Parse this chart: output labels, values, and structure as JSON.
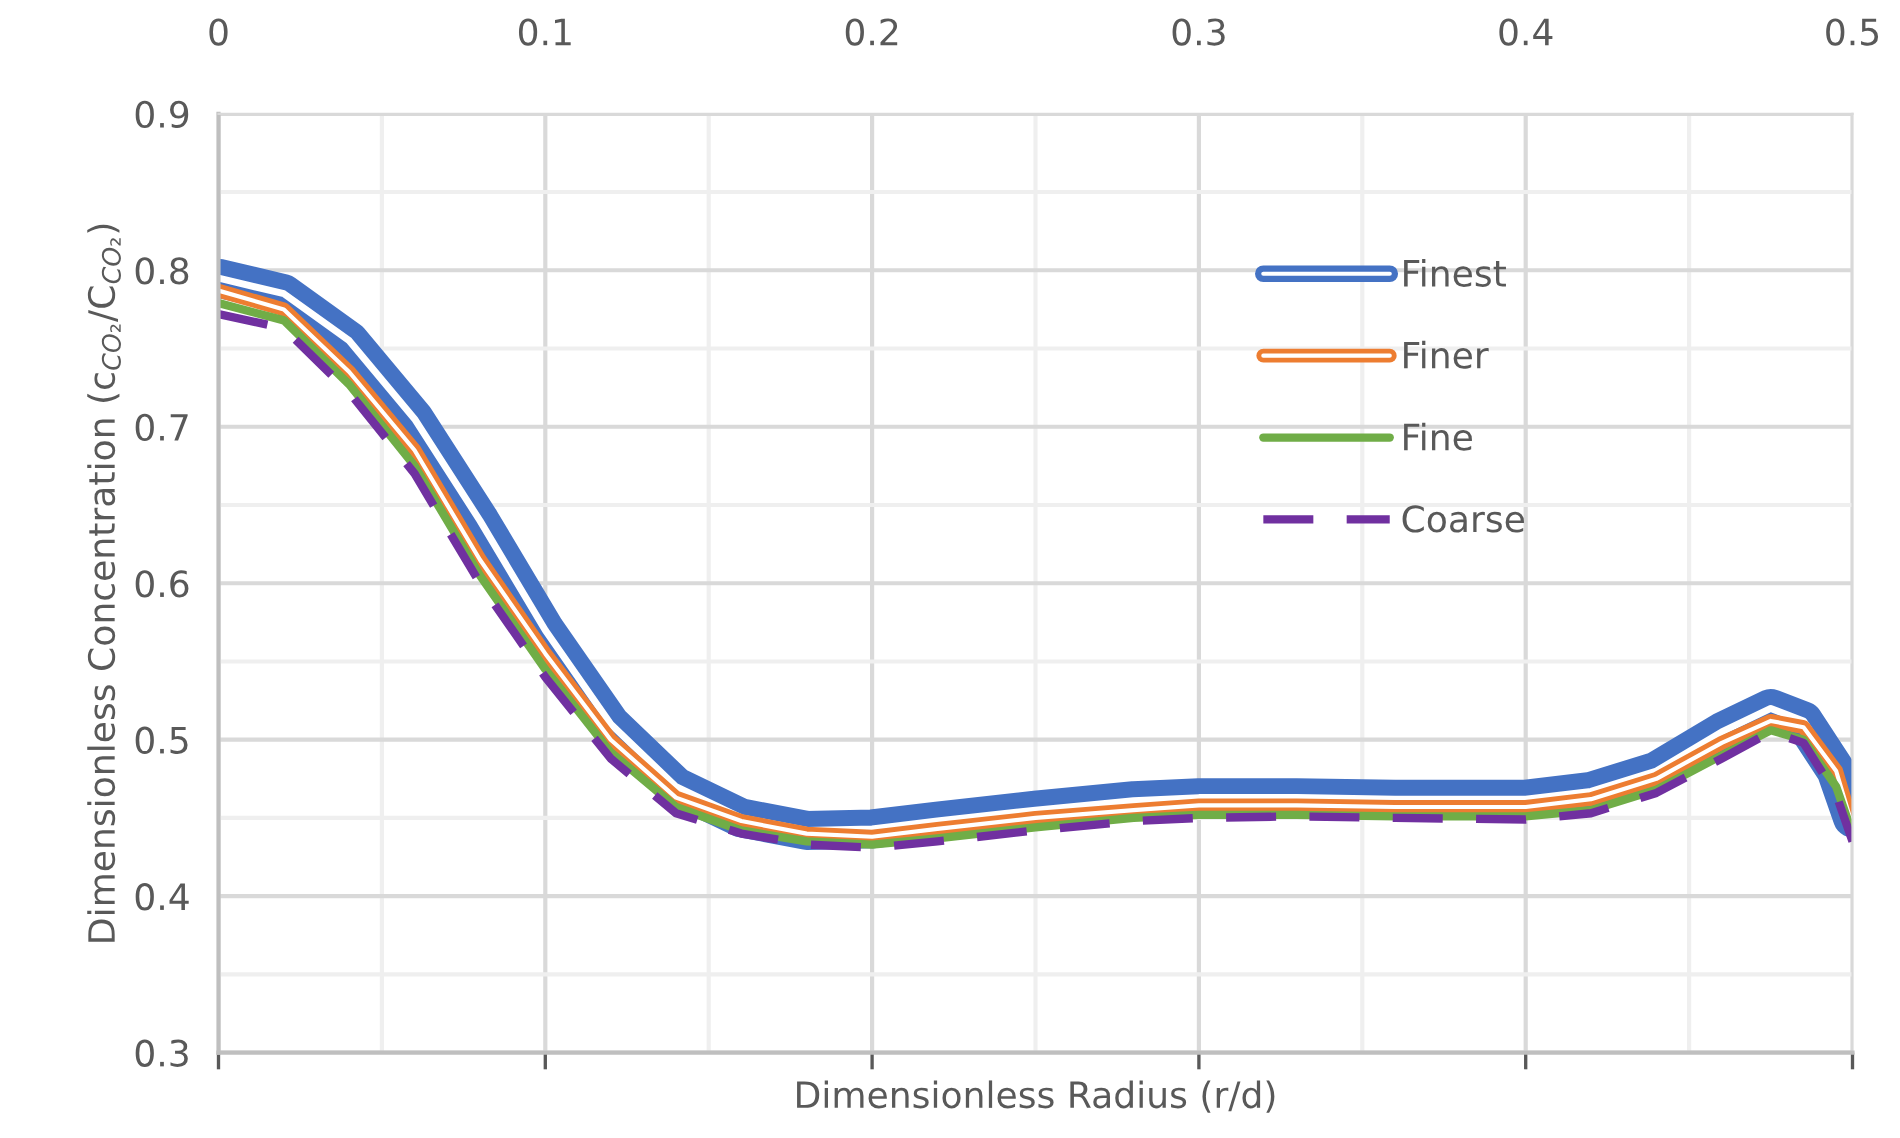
{
  "chart_data": {
    "type": "line",
    "xlabel": "Dimensionless Radius (r/d)",
    "ylabel": "Dimensionless Concentration (c$_{CO₂}$/C$_{CO₂}$)",
    "xlim": [
      0,
      0.5
    ],
    "xticks": [
      0,
      0.1,
      0.2,
      0.3,
      0.4,
      0.5
    ],
    "ylim": [
      0.3,
      0.9
    ],
    "yticks": [
      0.3,
      0.4,
      0.5,
      0.6,
      0.7,
      0.8,
      0.9
    ],
    "grid": true,
    "legend": "top right",
    "marker": "none",
    "x": [
      0,
      0.02,
      0.04,
      0.06,
      0.08,
      0.1,
      0.12,
      0.14,
      0.16,
      0.18,
      0.2,
      0.22,
      0.25,
      0.28,
      0.3,
      0.33,
      0.36,
      0.4,
      0.42,
      0.44,
      0.46,
      0.475,
      0.485,
      0.495,
      0.5
    ],
    "series": [
      {
        "name": "Finest",
        "color": "#4472c4",
        "line_style": "solid",
        "values": [
          0.795,
          0.785,
          0.755,
          0.705,
          0.64,
          0.57,
          0.51,
          0.47,
          0.45,
          0.442,
          0.443,
          0.448,
          0.455,
          0.461,
          0.463,
          0.463,
          0.462,
          0.462,
          0.467,
          0.48,
          0.505,
          0.52,
          0.512,
          0.48,
          0.45
        ]
      },
      {
        "name": "Finer",
        "color": "#ed7d31",
        "line_style": "solid",
        "values": [
          0.787,
          0.775,
          0.735,
          0.685,
          0.615,
          0.555,
          0.5,
          0.463,
          0.448,
          0.44,
          0.438,
          0.443,
          0.45,
          0.455,
          0.458,
          0.458,
          0.457,
          0.457,
          0.462,
          0.475,
          0.498,
          0.512,
          0.508,
          0.48,
          0.445
        ]
      },
      {
        "name": "Fine",
        "color": "#70ad47",
        "line_style": "solid",
        "values": [
          0.779,
          0.768,
          0.727,
          0.675,
          0.605,
          0.545,
          0.492,
          0.457,
          0.442,
          0.435,
          0.433,
          0.437,
          0.444,
          0.45,
          0.452,
          0.452,
          0.451,
          0.451,
          0.455,
          0.468,
          0.49,
          0.506,
          0.5,
          0.47,
          0.44
        ]
      },
      {
        "name": "Coarse",
        "color": "#7030a0",
        "line_style": "dashed",
        "values": [
          0.772,
          0.763,
          0.722,
          0.67,
          0.6,
          0.54,
          0.488,
          0.453,
          0.44,
          0.433,
          0.431,
          0.435,
          0.442,
          0.448,
          0.45,
          0.451,
          0.45,
          0.449,
          0.453,
          0.466,
          0.488,
          0.505,
          0.498,
          0.465,
          0.435
        ]
      }
    ]
  }
}
